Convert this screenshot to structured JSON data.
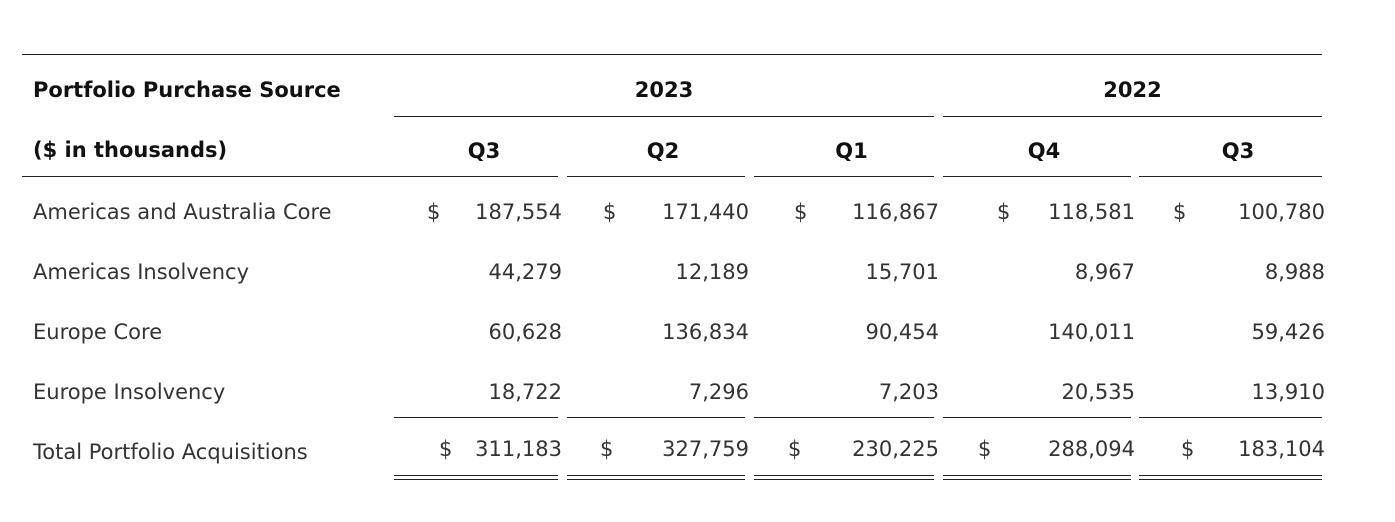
{
  "table": {
    "header_row1_label": "Portfolio Purchase Source",
    "header_row2_label": "($ in thousands)",
    "year_groups": [
      "2023",
      "2022"
    ],
    "quarters": [
      "Q3",
      "Q2",
      "Q1",
      "Q4",
      "Q3"
    ],
    "currency_symbol": "$",
    "rows": [
      {
        "label": "Americas and Australia Core",
        "values": [
          "187,554",
          "171,440",
          "116,867",
          "118,581",
          "100,780"
        ]
      },
      {
        "label": "Americas Insolvency",
        "values": [
          "44,279",
          "12,189",
          "15,701",
          "8,967",
          "8,988"
        ]
      },
      {
        "label": "Europe Core",
        "values": [
          "60,628",
          "136,834",
          "90,454",
          "140,011",
          "59,426"
        ]
      },
      {
        "label": "Europe Insolvency",
        "values": [
          "18,722",
          "7,296",
          "7,203",
          "20,535",
          "13,910"
        ]
      }
    ],
    "total": {
      "label": "Total Portfolio Acquisitions",
      "values": [
        "311,183",
        "327,759",
        "230,225",
        "288,094",
        "183,104"
      ]
    }
  }
}
